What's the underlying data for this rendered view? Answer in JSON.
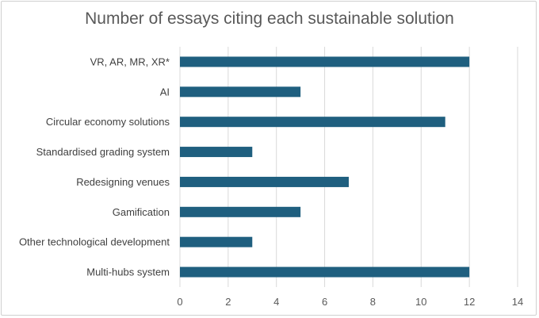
{
  "chart_data": {
    "type": "bar",
    "orientation": "horizontal",
    "title": "Number of essays citing each sustainable solution",
    "xlabel": "",
    "ylabel": "",
    "categories": [
      "VR, AR, MR, XR*",
      "AI",
      "Circular economy solutions",
      "Standardised grading system",
      "Redesigning venues",
      "Gamification",
      "Other technological development",
      "Multi-hubs system"
    ],
    "values": [
      12,
      5,
      11,
      3,
      7,
      5,
      3,
      12
    ],
    "xlim": [
      0,
      14
    ],
    "xticks": [
      0,
      2,
      4,
      6,
      8,
      10,
      12,
      14
    ],
    "grid": "vertical",
    "legend": "none",
    "bar_color": "#1f5f7f",
    "grid_color": "#d9d9d9"
  }
}
